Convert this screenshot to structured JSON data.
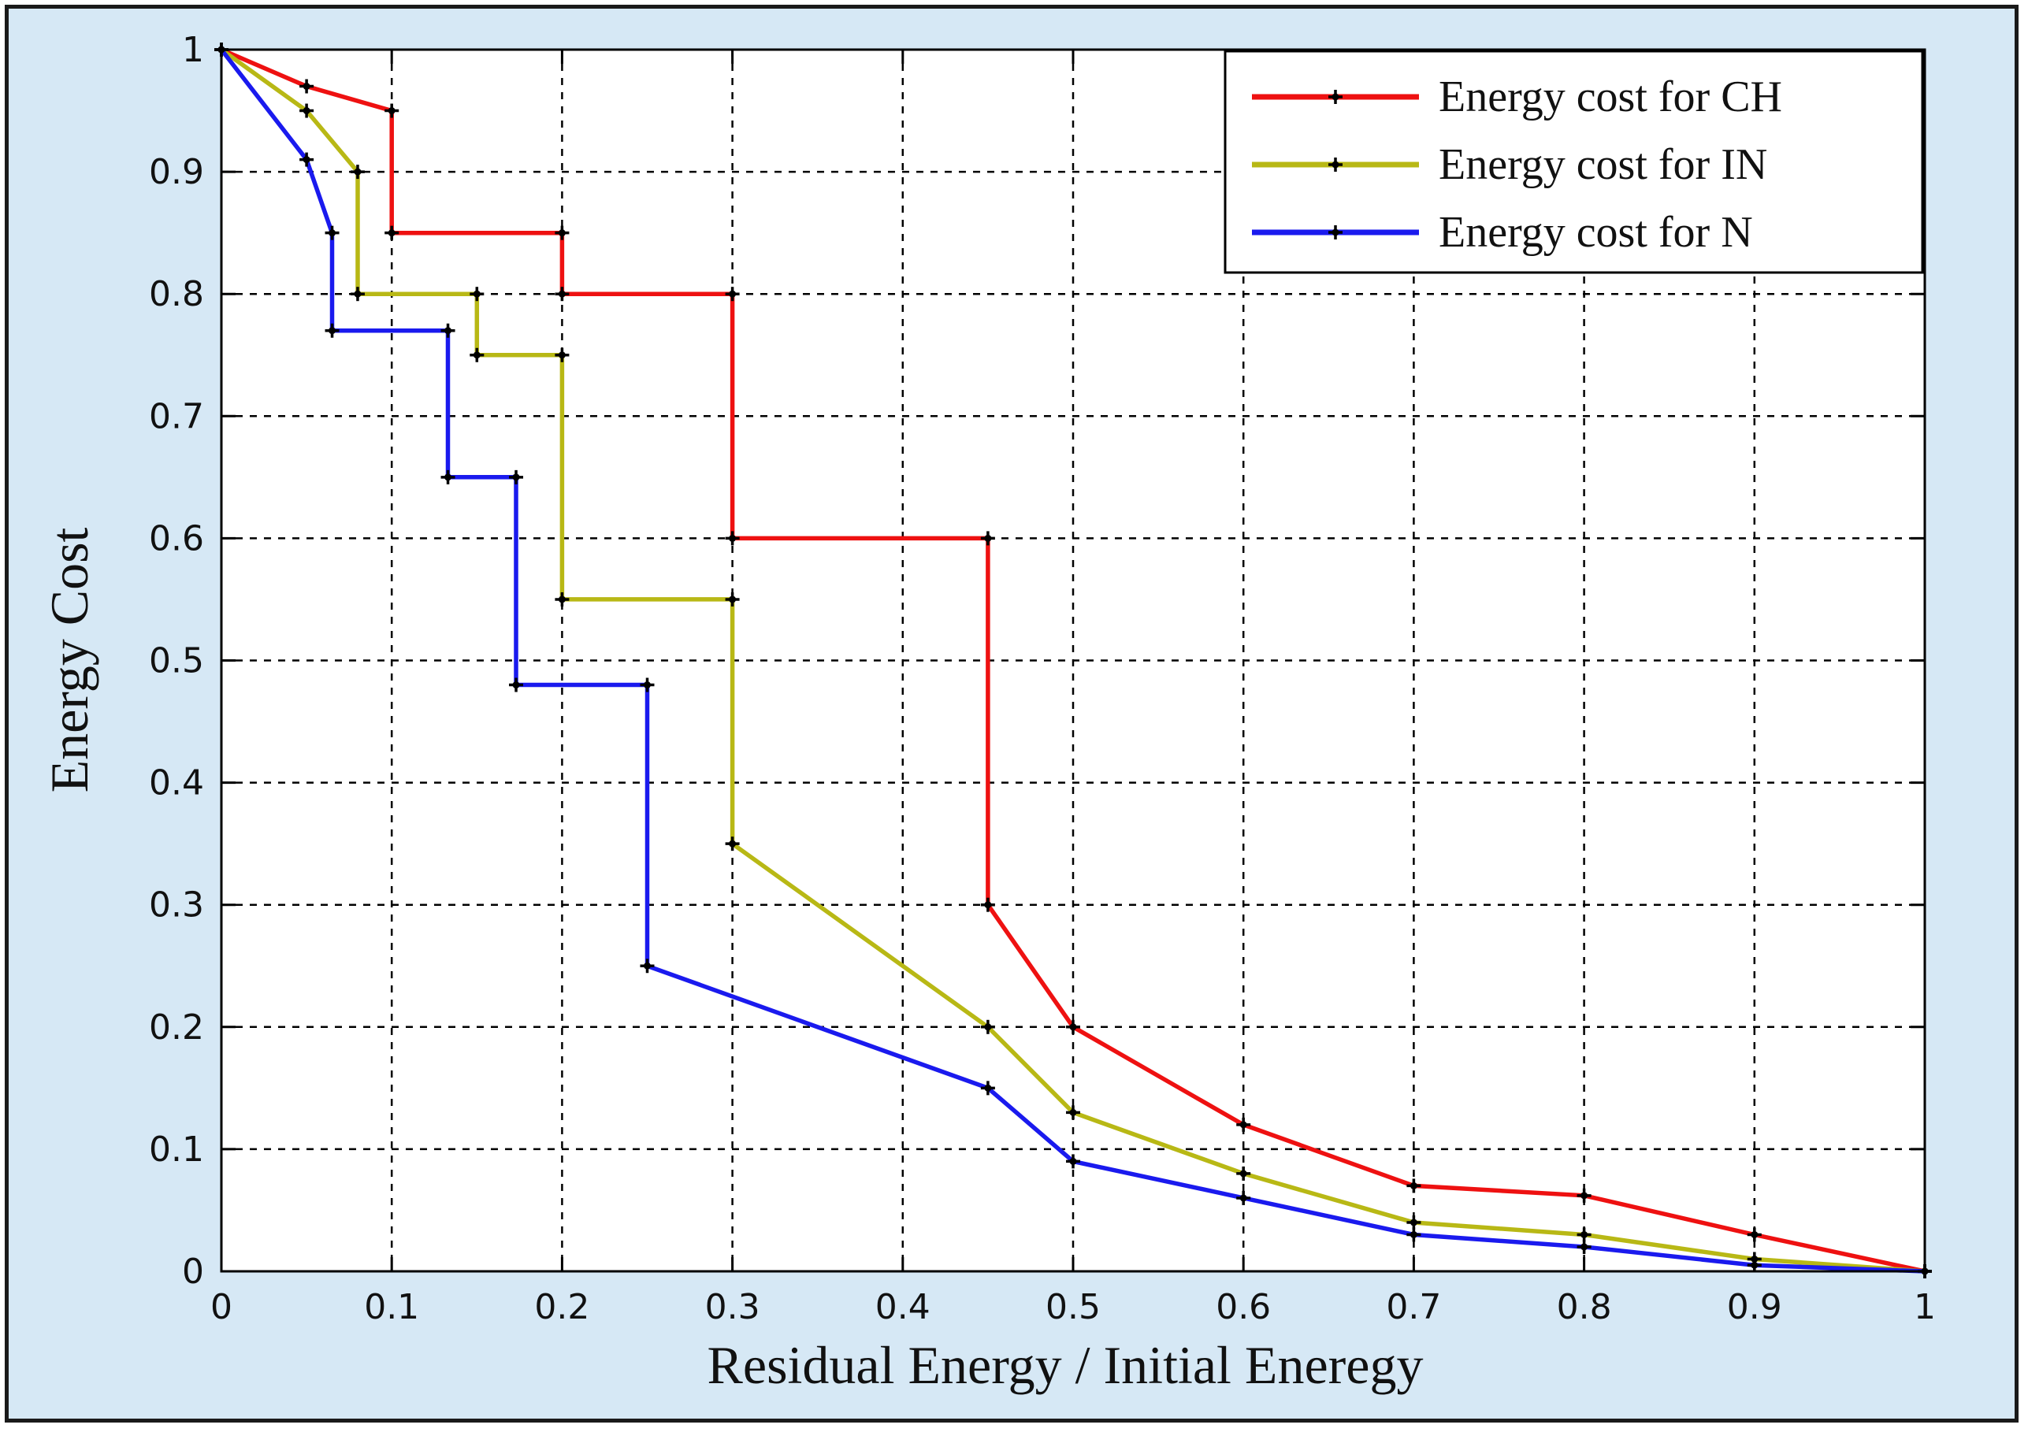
{
  "chart_data": {
    "type": "line",
    "xlabel": "Residual Energy / Initial Eneregy",
    "ylabel": "Energy Cost",
    "xlim": [
      0,
      1
    ],
    "ylim": [
      0,
      1
    ],
    "grid": true,
    "legend_position": "top-right",
    "x_ticks": [
      0,
      0.1,
      0.2,
      0.3,
      0.4,
      0.5,
      0.6,
      0.7,
      0.8,
      0.9,
      1
    ],
    "x_tick_labels": [
      "0",
      "0.1",
      "0.2",
      "0.3",
      "0.4",
      "0.5",
      "0.6",
      "0.7",
      "0.8",
      "0.9",
      "1"
    ],
    "y_ticks": [
      0,
      0.1,
      0.2,
      0.3,
      0.4,
      0.5,
      0.6,
      0.7,
      0.8,
      0.9,
      1
    ],
    "y_tick_labels": [
      "0",
      "0.1",
      "0.2",
      "0.3",
      "0.4",
      "0.5",
      "0.6",
      "0.7",
      "0.8",
      "0.9",
      "1"
    ],
    "series": [
      {
        "name": "Energy cost for CH",
        "color": "#ee1111",
        "x": [
          0,
          0.05,
          0.1,
          0.1,
          0.2,
          0.2,
          0.3,
          0.3,
          0.45,
          0.45,
          0.5,
          0.6,
          0.7,
          0.8,
          0.9,
          1
        ],
        "y": [
          1,
          0.97,
          0.95,
          0.85,
          0.85,
          0.8,
          0.8,
          0.6,
          0.6,
          0.3,
          0.2,
          0.12,
          0.07,
          0.062,
          0.03,
          0
        ]
      },
      {
        "name": "Energy cost for IN",
        "color": "#b8b815",
        "x": [
          0,
          0.05,
          0.08,
          0.08,
          0.15,
          0.15,
          0.2,
          0.2,
          0.3,
          0.3,
          0.45,
          0.5,
          0.6,
          0.7,
          0.8,
          0.9,
          1
        ],
        "y": [
          1,
          0.95,
          0.9,
          0.8,
          0.8,
          0.75,
          0.75,
          0.55,
          0.55,
          0.35,
          0.2,
          0.13,
          0.08,
          0.04,
          0.03,
          0.01,
          0
        ]
      },
      {
        "name": "Energy cost for N",
        "color": "#1a1aee",
        "x": [
          0,
          0.05,
          0.065,
          0.065,
          0.133,
          0.133,
          0.173,
          0.173,
          0.25,
          0.25,
          0.45,
          0.5,
          0.6,
          0.7,
          0.8,
          0.9,
          1
        ],
        "y": [
          1,
          0.91,
          0.85,
          0.77,
          0.77,
          0.65,
          0.65,
          0.48,
          0.48,
          0.25,
          0.15,
          0.09,
          0.06,
          0.03,
          0.02,
          0.005,
          0
        ]
      }
    ]
  }
}
